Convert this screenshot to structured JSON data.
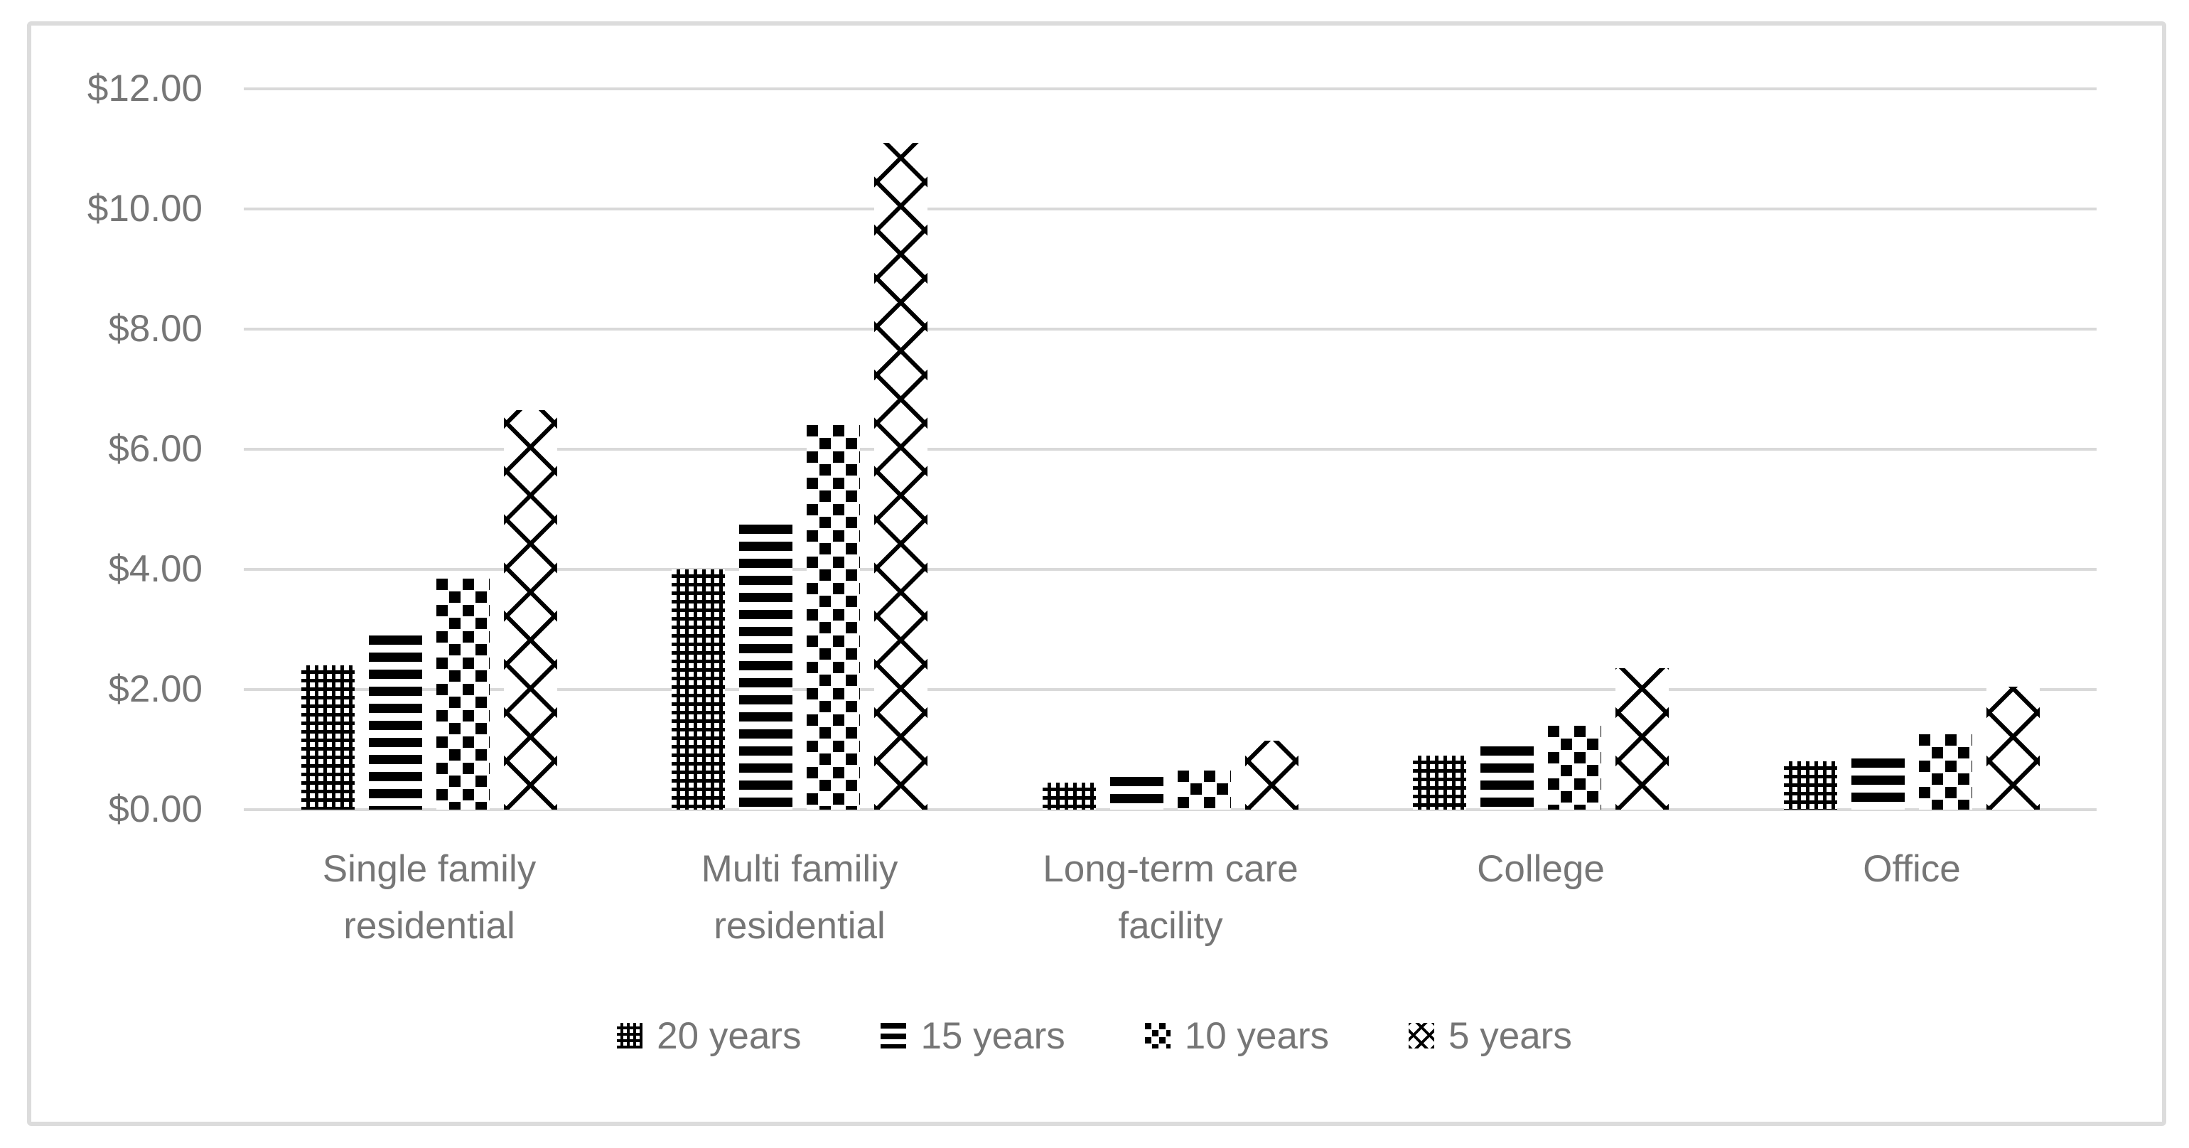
{
  "colors": {
    "background": "#ffffff",
    "border": "#dcdcdc",
    "gridline": "#d9d9d9",
    "text": "#767676",
    "bar_fill": "#000000"
  },
  "y_axis": {
    "tick_labels": [
      "$12.00",
      "$10.00",
      "$8.00",
      "$6.00",
      "$4.00",
      "$2.00",
      "$0.00"
    ]
  },
  "legend": {
    "items": [
      "20 years",
      "15 years",
      "10 years",
      "5 years"
    ]
  },
  "chart_data": {
    "type": "bar",
    "title": "",
    "categories": [
      "Single family\nresidential",
      "Multi familiy\nresidential",
      "Long-term care\nfacility",
      "College",
      "Office"
    ],
    "series": [
      {
        "name": "20 years",
        "pattern": "checkerboard-grid",
        "values": [
          2.4,
          4.0,
          0.45,
          0.9,
          0.8
        ]
      },
      {
        "name": "15 years",
        "pattern": "horizontal-stripes",
        "values": [
          2.9,
          4.75,
          0.55,
          1.05,
          0.85
        ]
      },
      {
        "name": "10 years",
        "pattern": "scattered-squares",
        "values": [
          3.85,
          6.4,
          0.65,
          1.4,
          1.25
        ]
      },
      {
        "name": "5 years",
        "pattern": "diagonal-crosshatch",
        "values": [
          6.65,
          11.1,
          1.15,
          2.35,
          2.05
        ]
      }
    ],
    "ylabel": "",
    "xlabel": "",
    "ylim": [
      0,
      12
    ],
    "ytick_step": 2,
    "ytick_format": "$0.00",
    "grid": true,
    "legend_position": "bottom"
  }
}
